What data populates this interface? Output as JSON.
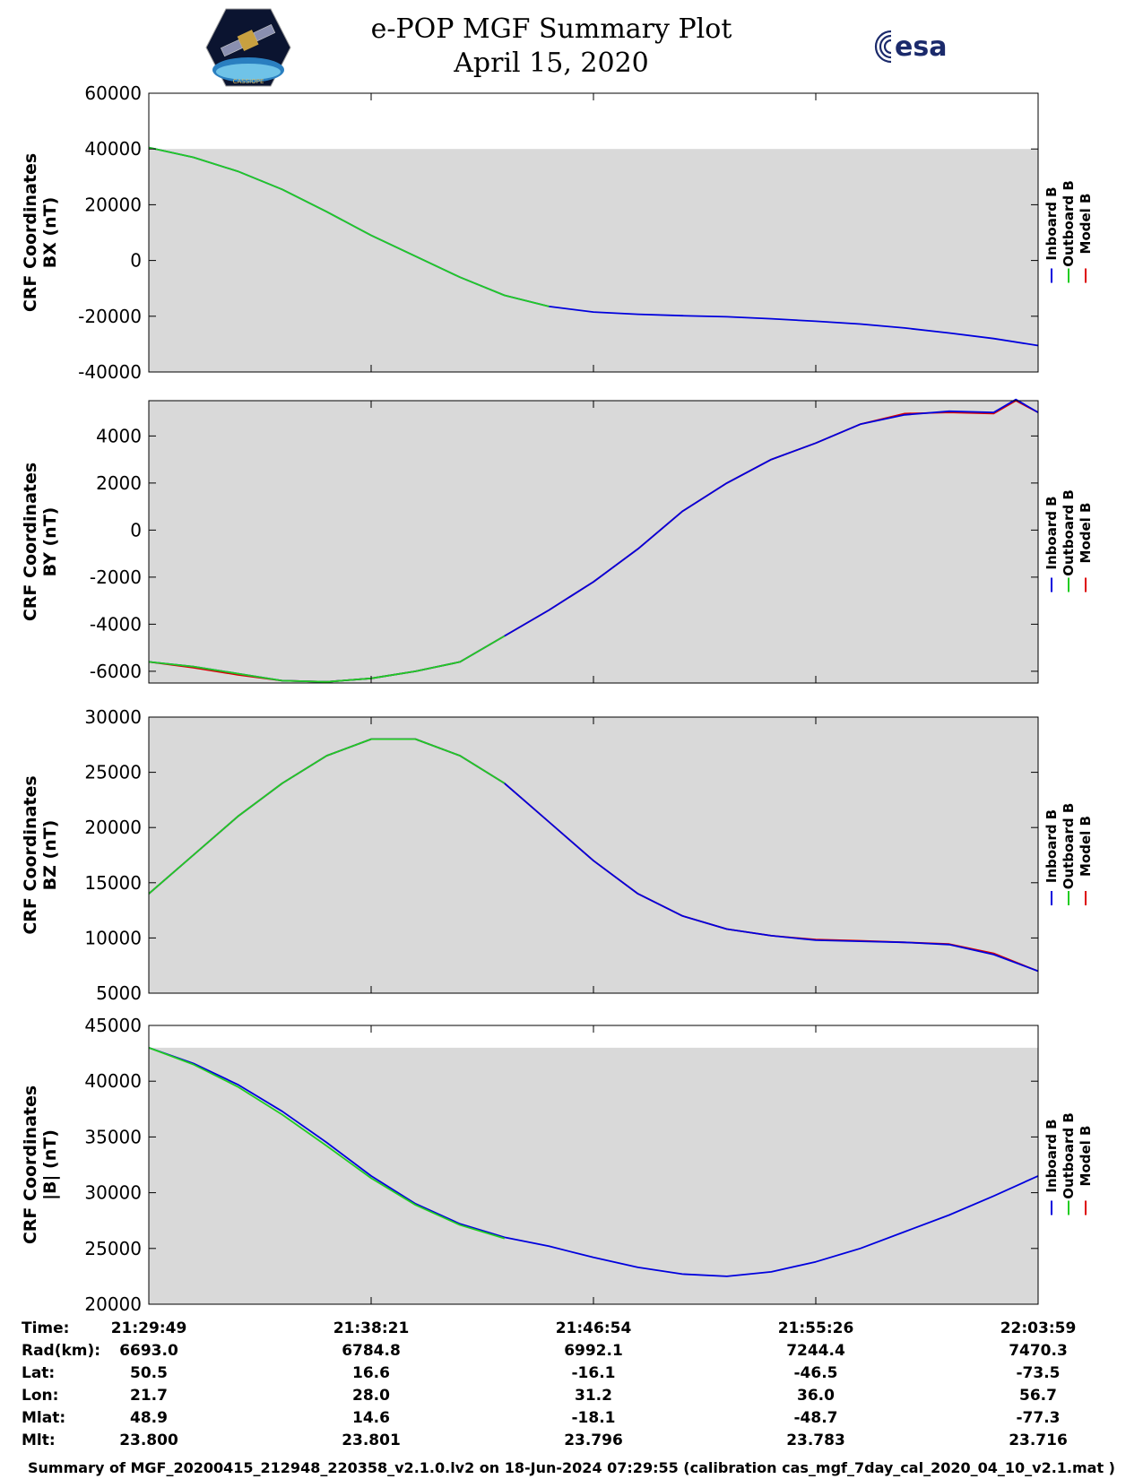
{
  "header": {
    "title": "e-POP MGF Summary Plot",
    "date": "April 15, 2020",
    "left_logo_text": "CASSIOPE",
    "right_logo_text": "esa"
  },
  "legend": {
    "labels": [
      "Inboard B",
      "Outboard B",
      "Model B"
    ],
    "colors": [
      "#0000dd",
      "#22cc22",
      "#dd0000"
    ]
  },
  "colors": {
    "panel_bg": "#d9d9d9",
    "inboard": "#0000dd",
    "outboard": "#22cc22",
    "model": "#dd0000"
  },
  "chart_data": [
    {
      "type": "line",
      "ylabel_line1": "CRF Coordinates",
      "ylabel_line2": "BX (nT)",
      "ylim": [
        -40000,
        60000
      ],
      "yticks": [
        -40000,
        -20000,
        0,
        20000,
        40000,
        60000
      ],
      "ytick_labels": [
        "-40000",
        "-20000",
        "0",
        "20000",
        "40000",
        "60000"
      ],
      "fill_top": 40000,
      "x": [
        0,
        0.05,
        0.1,
        0.15,
        0.2,
        0.25,
        0.3,
        0.35,
        0.4,
        0.45,
        0.5,
        0.55,
        0.6,
        0.65,
        0.7,
        0.75,
        0.8,
        0.85,
        0.9,
        0.95,
        1.0
      ],
      "series": [
        {
          "name": "Inboard B",
          "values": [
            40500,
            37000,
            32000,
            25500,
            17500,
            9000,
            1500,
            -6000,
            -12500,
            -16500,
            -18500,
            -19300,
            -19800,
            -20200,
            -20900,
            -21800,
            -22800,
            -24200,
            -26000,
            -28000,
            -30500
          ]
        },
        {
          "name": "Outboard B",
          "values": [
            40500,
            37000,
            32000,
            25500,
            17500,
            9000,
            1500,
            -6000,
            -12500,
            -16500,
            null,
            null,
            null,
            null,
            null,
            null,
            null,
            null,
            null,
            null,
            null
          ]
        }
      ]
    },
    {
      "type": "line",
      "ylabel_line1": "CRF Coordinates",
      "ylabel_line2": "BY (nT)",
      "ylim": [
        -6500,
        5500
      ],
      "yticks": [
        -6000,
        -4000,
        -2000,
        0,
        2000,
        4000
      ],
      "ytick_labels": [
        "-6000",
        "-4000",
        "-2000",
        "0",
        "2000",
        "4000"
      ],
      "fill_top": 5500,
      "x": [
        0,
        0.05,
        0.1,
        0.15,
        0.2,
        0.25,
        0.3,
        0.35,
        0.4,
        0.45,
        0.5,
        0.55,
        0.6,
        0.65,
        0.7,
        0.75,
        0.8,
        0.85,
        0.9,
        0.95,
        0.975,
        1.0
      ],
      "series": [
        {
          "name": "Inboard B",
          "values": [
            -5600,
            -5800,
            -6100,
            -6400,
            -6450,
            -6300,
            -6000,
            -5600,
            -4500,
            -3400,
            -2200,
            -800,
            800,
            2000,
            3000,
            3700,
            4500,
            4900,
            5050,
            5000,
            5550,
            5000
          ]
        },
        {
          "name": "Outboard B",
          "values": [
            -5600,
            -5800,
            -6100,
            -6400,
            -6450,
            -6300,
            -6000,
            -5600,
            -4500,
            null,
            null,
            null,
            null,
            null,
            null,
            null,
            null,
            null,
            null,
            null,
            null,
            null
          ]
        },
        {
          "name": "Model B",
          "values": [
            -5600,
            -5850,
            -6150,
            -6400,
            -6450,
            -6300,
            -6000,
            -5600,
            -4500,
            -3400,
            -2200,
            -800,
            800,
            2000,
            3000,
            3700,
            4500,
            4950,
            5000,
            4950,
            5500,
            5000
          ]
        }
      ]
    },
    {
      "type": "line",
      "ylabel_line1": "CRF Coordinates",
      "ylabel_line2": "BZ (nT)",
      "ylim": [
        5000,
        30000
      ],
      "yticks": [
        5000,
        10000,
        15000,
        20000,
        25000,
        30000
      ],
      "ytick_labels": [
        "5000",
        "10000",
        "15000",
        "20000",
        "25000",
        "30000"
      ],
      "fill_top": 30000,
      "x": [
        0,
        0.05,
        0.1,
        0.15,
        0.2,
        0.25,
        0.3,
        0.35,
        0.4,
        0.45,
        0.5,
        0.55,
        0.6,
        0.65,
        0.7,
        0.75,
        0.8,
        0.85,
        0.9,
        0.95,
        1.0
      ],
      "series": [
        {
          "name": "Inboard B",
          "values": [
            14000,
            17500,
            21000,
            24000,
            26500,
            28000,
            28000,
            26500,
            24000,
            20500,
            17000,
            14000,
            12000,
            10800,
            10200,
            9800,
            9700,
            9600,
            9400,
            8500,
            7000
          ]
        },
        {
          "name": "Outboard B",
          "values": [
            14000,
            17500,
            21000,
            24000,
            26500,
            28000,
            28000,
            26500,
            24000,
            null,
            null,
            null,
            null,
            null,
            null,
            null,
            null,
            null,
            null,
            null,
            null
          ]
        },
        {
          "name": "Model B",
          "values": [
            14000,
            17500,
            21000,
            24000,
            26500,
            28000,
            28000,
            26500,
            24000,
            20500,
            17000,
            14000,
            12000,
            10800,
            10200,
            9850,
            9750,
            9600,
            9450,
            8600,
            7000
          ]
        }
      ]
    },
    {
      "type": "line",
      "ylabel_line1": "CRF Coordinates",
      "ylabel_line2": "|B| (nT)",
      "ylim": [
        20000,
        45000
      ],
      "yticks": [
        20000,
        25000,
        30000,
        35000,
        40000,
        45000
      ],
      "ytick_labels": [
        "20000",
        "25000",
        "30000",
        "35000",
        "40000",
        "45000"
      ],
      "fill_top": 43000,
      "x": [
        0,
        0.05,
        0.1,
        0.15,
        0.2,
        0.25,
        0.3,
        0.35,
        0.4,
        0.45,
        0.5,
        0.55,
        0.6,
        0.65,
        0.7,
        0.75,
        0.8,
        0.85,
        0.9,
        0.95,
        1.0
      ],
      "series": [
        {
          "name": "Inboard B",
          "values": [
            43000,
            41600,
            39700,
            37300,
            34500,
            31500,
            29000,
            27200,
            26000,
            25200,
            24200,
            23300,
            22700,
            22500,
            22900,
            23800,
            25000,
            26500,
            28000,
            29700,
            31500
          ]
        },
        {
          "name": "Outboard B",
          "values": [
            43000,
            41500,
            39500,
            37000,
            34200,
            31300,
            28900,
            27100,
            25900,
            null,
            null,
            null,
            null,
            null,
            null,
            null,
            null,
            null,
            null,
            null,
            null
          ]
        }
      ]
    }
  ],
  "axis_info": {
    "rows": [
      {
        "label": "Time:",
        "values": [
          "21:29:49",
          "21:38:21",
          "21:46:54",
          "21:55:26",
          "22:03:59"
        ]
      },
      {
        "label": "Rad(km):",
        "values": [
          "6693.0",
          "6784.8",
          "6992.1",
          "7244.4",
          "7470.3"
        ]
      },
      {
        "label": "Lat:",
        "values": [
          "50.5",
          "16.6",
          "-16.1",
          "-46.5",
          "-73.5"
        ]
      },
      {
        "label": "Lon:",
        "values": [
          "21.7",
          "28.0",
          "31.2",
          "36.0",
          "56.7"
        ]
      },
      {
        "label": "Mlat:",
        "values": [
          "48.9",
          "14.6",
          "-18.1",
          "-48.7",
          "-77.3"
        ]
      },
      {
        "label": "Mlt:",
        "values": [
          "23.800",
          "23.801",
          "23.796",
          "23.783",
          "23.716"
        ]
      }
    ]
  },
  "footer": "Summary of MGF_20200415_212948_220358_v2.1.0.lv2 on 18-Jun-2024 07:29:55 (calibration cas_mgf_7day_cal_2020_04_10_v2.1.mat )"
}
